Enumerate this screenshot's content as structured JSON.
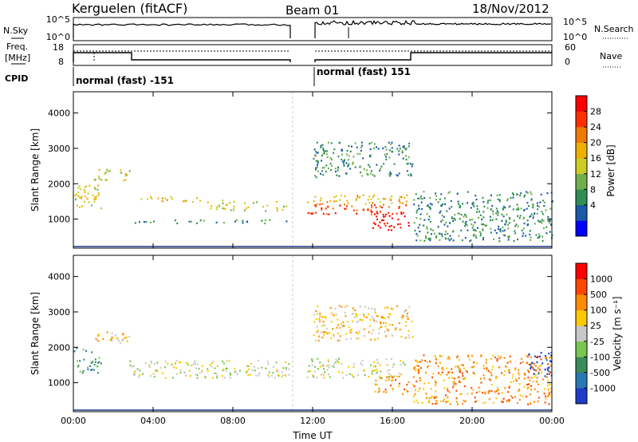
{
  "header": {
    "station": "Kerguelen (fitACF)",
    "beam": "Beam 01",
    "date": "18/Nov/2012"
  },
  "noise_panel": {
    "left_label": "N.Sky",
    "right_label": "N.Search",
    "left_ticks": [
      "10^5",
      "10^0"
    ],
    "right_ticks": [
      "10^5",
      "10^0"
    ]
  },
  "freq_panel": {
    "left_label_1": "Freq.",
    "left_label_2": "[MHz]",
    "left_ticks": [
      "18",
      "8"
    ],
    "right_label": "Nave",
    "right_ticks": [
      "60",
      "0"
    ],
    "cpid_label": "CPID",
    "cpid_entries": [
      "normal (fast) -151",
      "normal (fast) 151"
    ]
  },
  "chart_data": [
    {
      "type": "heatmap",
      "title": "",
      "xlabel": "",
      "ylabel": "Slant Range [km]",
      "x_ticks": [
        "00:00",
        "04:00",
        "08:00",
        "12:00",
        "16:00",
        "20:00",
        "00:00"
      ],
      "xlim_hours": [
        0,
        24
      ],
      "y_ticks": [
        "1000",
        "2000",
        "3000",
        "4000"
      ],
      "ylim": [
        180,
        4600
      ],
      "data_gap_hours": [
        10.9,
        11.7
      ],
      "colorbar": {
        "label": "Power [dB]",
        "ticks": [
          "28",
          "24",
          "20",
          "16",
          "12",
          "8",
          "4"
        ],
        "colors": [
          "#0000ff",
          "#1a5aa8",
          "#2f8f52",
          "#6fb04c",
          "#cccc22",
          "#f0b000",
          "#f07a00",
          "#ff3000",
          "#ff0000"
        ]
      },
      "echo_bands": [
        {
          "t0": 0.0,
          "t1": 1.4,
          "r0": 1300,
          "r1": 2000,
          "level": 4
        },
        {
          "t0": 1.0,
          "t1": 2.8,
          "r0": 2100,
          "r1": 2450,
          "level": 4
        },
        {
          "t0": 2.8,
          "t1": 6.5,
          "r0": 1500,
          "r1": 1650,
          "level": 5
        },
        {
          "t0": 6.5,
          "t1": 10.8,
          "r0": 1250,
          "r1": 1550,
          "level": 4
        },
        {
          "t0": 3.0,
          "t1": 10.8,
          "r0": 900,
          "r1": 1000,
          "level": 2
        },
        {
          "t0": 11.7,
          "t1": 16.8,
          "r0": 1150,
          "r1": 1450,
          "level": 7
        },
        {
          "t0": 11.7,
          "t1": 16.8,
          "r0": 1450,
          "r1": 1700,
          "level": 5
        },
        {
          "t0": 15.0,
          "t1": 16.8,
          "r0": 700,
          "r1": 1200,
          "level": 8
        },
        {
          "t0": 12.0,
          "t1": 17.0,
          "r0": 2200,
          "r1": 3200,
          "level": 2
        },
        {
          "t0": 17.0,
          "t1": 24.0,
          "r0": 400,
          "r1": 1800,
          "level": 2
        }
      ]
    },
    {
      "type": "heatmap",
      "title": "",
      "xlabel": "Time UT",
      "ylabel": "Slant Range [km]",
      "x_ticks": [
        "00:00",
        "04:00",
        "08:00",
        "12:00",
        "16:00",
        "20:00",
        "00:00"
      ],
      "xlim_hours": [
        0,
        24
      ],
      "y_ticks": [
        "1000",
        "2000",
        "3000",
        "4000"
      ],
      "ylim": [
        180,
        4600
      ],
      "data_gap_hours": [
        10.9,
        11.7
      ],
      "colorbar": {
        "label": "Velocity [m s⁻¹]",
        "ticks": [
          "1000",
          "500",
          "100",
          "25",
          "-25",
          "-100",
          "-500",
          "-1000"
        ],
        "colors": [
          "#1e3cc8",
          "#2878b4",
          "#3c8c5a",
          "#78c850",
          "#c8c8c8",
          "#ffc800",
          "#ff8c00",
          "#ff4600",
          "#ff0000"
        ]
      },
      "echo_bands": [
        {
          "t0": 0.0,
          "t1": 1.4,
          "r0": 1300,
          "r1": 2000,
          "level": 2
        },
        {
          "t0": 1.0,
          "t1": 2.8,
          "r0": 2100,
          "r1": 2450,
          "level": 5
        },
        {
          "t0": 2.8,
          "t1": 10.8,
          "r0": 1150,
          "r1": 1650,
          "level": 4
        },
        {
          "t0": 11.7,
          "t1": 16.8,
          "r0": 1150,
          "r1": 1700,
          "level": 4
        },
        {
          "t0": 15.0,
          "t1": 16.8,
          "r0": 700,
          "r1": 1200,
          "level": 6
        },
        {
          "t0": 12.0,
          "t1": 17.0,
          "r0": 2200,
          "r1": 3200,
          "level": 5
        },
        {
          "t0": 17.0,
          "t1": 24.0,
          "r0": 400,
          "r1": 1800,
          "level": 6
        },
        {
          "t0": 22.8,
          "t1": 24.0,
          "r0": 1200,
          "r1": 1900,
          "level": 0
        }
      ]
    }
  ]
}
